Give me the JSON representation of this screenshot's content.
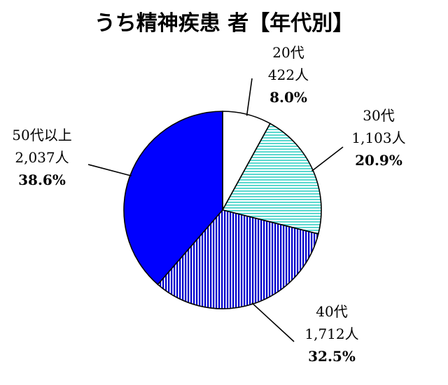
{
  "chart_data": {
    "type": "pie",
    "title": "うち精神疾患 者【年代別】",
    "start_angle_deg": 0,
    "direction": "clockwise",
    "slices": [
      {
        "label": "20代",
        "count": "422人",
        "percent": "8.0%",
        "value": 8.0,
        "pattern": "white",
        "color": "#ffffff"
      },
      {
        "label": "30代",
        "count": "1,103人",
        "percent": "20.9%",
        "value": 20.9,
        "pattern": "hlines",
        "color": "#7fe6e0"
      },
      {
        "label": "40代",
        "count": "1,712人",
        "percent": "32.5%",
        "value": 32.5,
        "pattern": "vlines",
        "color": "#1a1aff"
      },
      {
        "label": "50代以上",
        "count": "2,037人",
        "percent": "38.6%",
        "value": 38.6,
        "pattern": "solid",
        "color": "#0000ff"
      }
    ],
    "legend": "none"
  }
}
